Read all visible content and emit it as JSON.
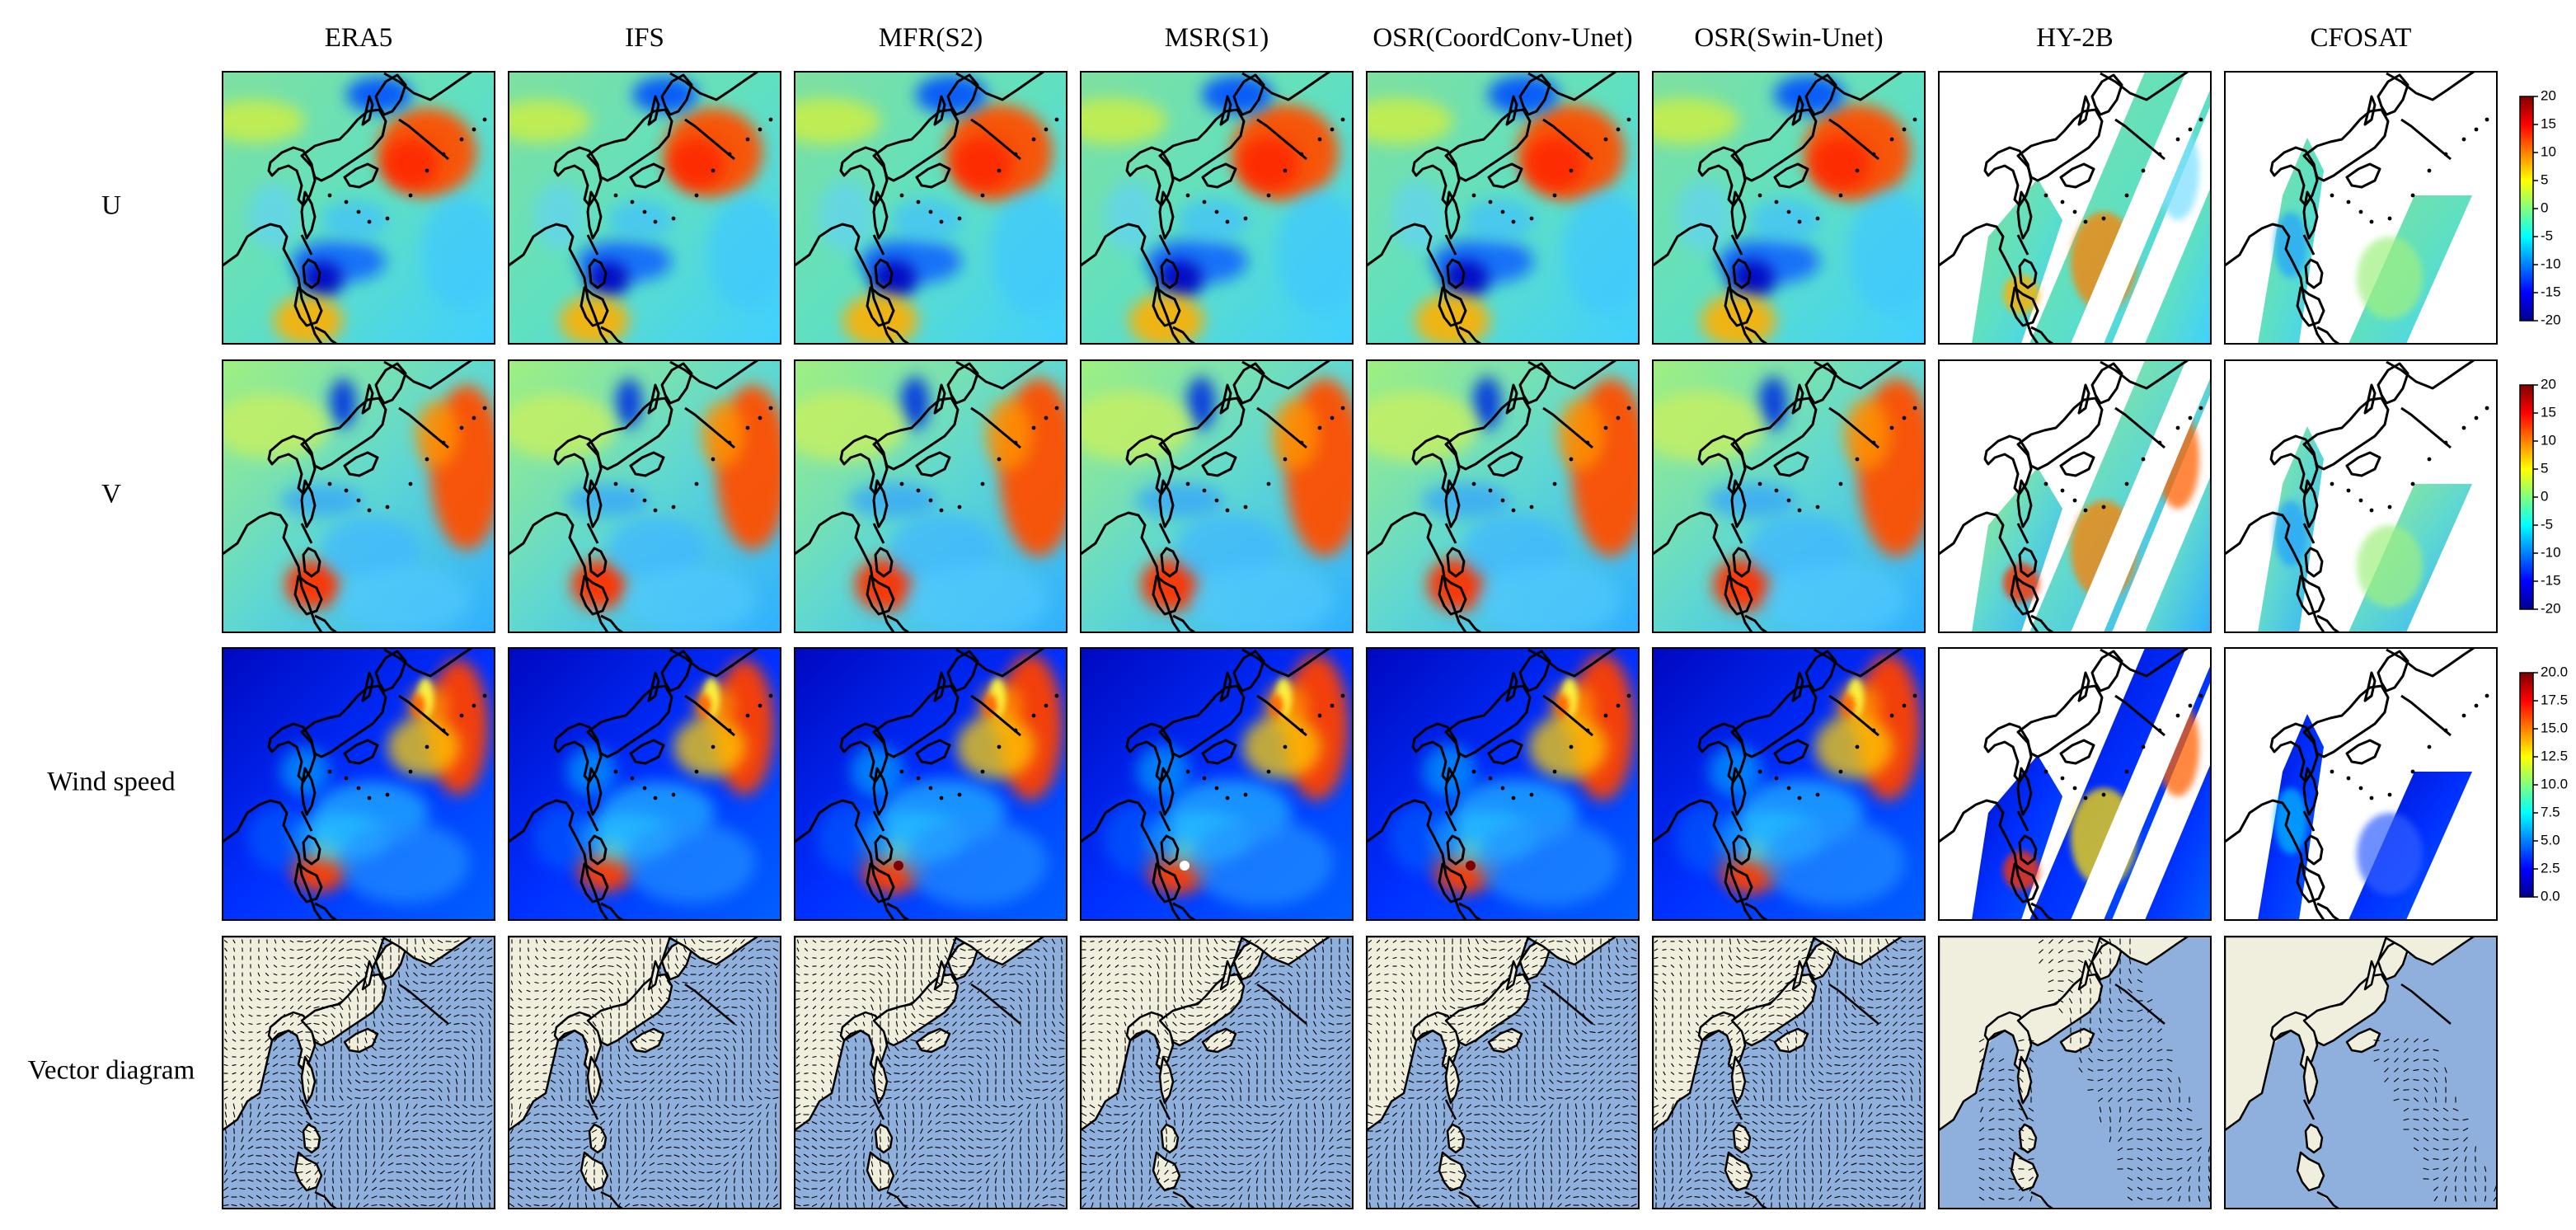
{
  "columns": [
    "ERA5",
    "IFS",
    "MFR(S2)",
    "MSR(S1)",
    "OSR(CoordConv-Unet)",
    "OSR(Swin-Unet)",
    "HY-2B",
    "CFOSAT"
  ],
  "rows": [
    "U",
    "V",
    "Wind speed",
    "Vector diagram"
  ],
  "colors": {
    "land_vector": "#f0eedc",
    "ocean_vector": "#8fb0dc",
    "swath_gap": "#ffffff",
    "colormap": [
      "#00008f",
      "#0000ff",
      "#0080ff",
      "#00ffff",
      "#80ff80",
      "#ffff00",
      "#ff8000",
      "#ff0000",
      "#800000"
    ]
  },
  "chart_data": [
    {
      "type": "heatmap",
      "row": "U",
      "panels": [
        "ERA5",
        "IFS",
        "MFR(S2)",
        "MSR(S1)",
        "OSR(CoordConv-Unet)",
        "OSR(Swin-Unet)",
        "HY-2B",
        "CFOSAT"
      ],
      "colorbar": {
        "range": [
          -20,
          20
        ],
        "ticks": [
          "20",
          "15",
          "10",
          "5",
          "0",
          "-5",
          "-10",
          "-15",
          "-20"
        ]
      }
    },
    {
      "type": "heatmap",
      "row": "V",
      "panels": [
        "ERA5",
        "IFS",
        "MFR(S2)",
        "MSR(S1)",
        "OSR(CoordConv-Unet)",
        "OSR(Swin-Unet)",
        "HY-2B",
        "CFOSAT"
      ],
      "colorbar": {
        "range": [
          -20,
          20
        ],
        "ticks": [
          "20",
          "15",
          "10",
          "5",
          "0",
          "-5",
          "-10",
          "-15",
          "-20"
        ]
      }
    },
    {
      "type": "heatmap",
      "row": "Wind speed",
      "panels": [
        "ERA5",
        "IFS",
        "MFR(S2)",
        "MSR(S1)",
        "OSR(CoordConv-Unet)",
        "OSR(Swin-Unet)",
        "HY-2B",
        "CFOSAT"
      ],
      "colorbar": {
        "range": [
          0,
          20
        ],
        "ticks": [
          "20.0",
          "17.5",
          "15.0",
          "12.5",
          "10.0",
          "7.5",
          "5.0",
          "2.5",
          "0.0"
        ]
      }
    },
    {
      "type": "scatter",
      "row": "Vector diagram",
      "panels": [
        "ERA5",
        "IFS",
        "MFR(S2)",
        "MSR(S1)",
        "OSR(CoordConv-Unet)",
        "OSR(Swin-Unet)",
        "HY-2B",
        "CFOSAT"
      ]
    }
  ]
}
